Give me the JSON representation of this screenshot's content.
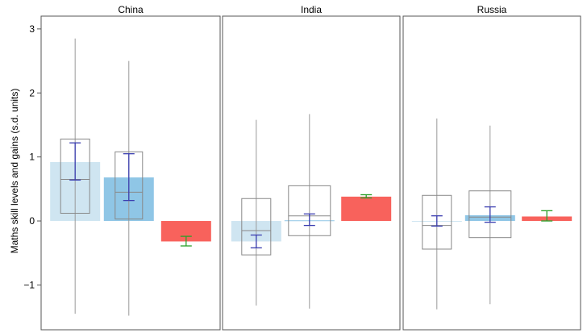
{
  "chart_data": {
    "type": "boxplot",
    "ylabel": "Maths skill levels and gains (s.d. units)",
    "ylim": [
      -1.7,
      3.2
    ],
    "yticks": [
      3,
      2,
      1,
      0,
      -1
    ],
    "ytick_labels": [
      "3",
      "2",
      "1",
      "0",
      "−1"
    ],
    "colors": {
      "level1_bar": "#cfe5f1",
      "level2_bar": "#8fc6e6",
      "gain_bar": "#f8625c",
      "ci_blue": "#3a3db0",
      "ci_green": "#2aa02a",
      "box": "#888888",
      "whisker": "#999999",
      "panel_border": "#555555"
    },
    "panels": [
      {
        "title": "China",
        "level1": {
          "bar": 0.92,
          "whisker_low": -1.45,
          "q1": 0.12,
          "median": 0.65,
          "q3": 1.28,
          "whisker_high": 2.85,
          "ci_low": 0.64,
          "ci_high": 1.22
        },
        "level2": {
          "bar": 0.68,
          "whisker_low": -1.48,
          "q1": 0.03,
          "median": 0.45,
          "q3": 1.08,
          "whisker_high": 2.5,
          "ci_low": 0.32,
          "ci_high": 1.05
        },
        "gain": {
          "bar": -0.32,
          "ci_low": -0.39,
          "ci_high": -0.24
        }
      },
      {
        "title": "India",
        "level1": {
          "bar": -0.32,
          "whisker_low": -1.32,
          "q1": -0.53,
          "median": -0.15,
          "q3": 0.35,
          "whisker_high": 1.58,
          "ci_low": -0.42,
          "ci_high": -0.22
        },
        "level2": {
          "bar": 0.01,
          "whisker_low": -1.37,
          "q1": -0.23,
          "median": 0.08,
          "q3": 0.55,
          "whisker_high": 1.67,
          "ci_low": -0.07,
          "ci_high": 0.11
        },
        "gain": {
          "bar": 0.38,
          "ci_low": 0.36,
          "ci_high": 0.41
        }
      },
      {
        "title": "Russia",
        "level1": {
          "bar": 0.0,
          "whisker_low": -1.38,
          "q1": -0.44,
          "median": -0.07,
          "q3": 0.4,
          "whisker_high": 1.6,
          "ci_low": -0.08,
          "ci_high": 0.08
        },
        "level2": {
          "bar": 0.09,
          "whisker_low": -1.3,
          "q1": -0.26,
          "median": 0.06,
          "q3": 0.47,
          "whisker_high": 1.49,
          "ci_low": -0.02,
          "ci_high": 0.22
        },
        "gain": {
          "bar": 0.07,
          "ci_low": 0.0,
          "ci_high": 0.16
        }
      }
    ]
  }
}
